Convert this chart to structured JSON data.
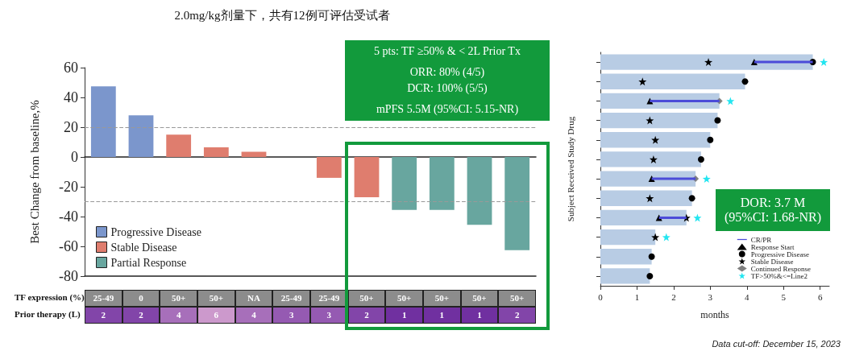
{
  "chart_data": [
    {
      "type": "bar",
      "title": "2.0mg/kg剂量下，共有12例可评估受试者",
      "ylabel": "Best Change from baseline,%",
      "categories": [
        null,
        null,
        null,
        null,
        null,
        null,
        null,
        null,
        null,
        null,
        null,
        null
      ],
      "series": [
        {
          "name": "Progressive Disease",
          "color": "#7b96cc",
          "values": [
            47.5,
            28,
            null,
            null,
            null,
            null,
            null,
            null,
            null,
            null,
            null,
            null
          ]
        },
        {
          "name": "Stable Disease",
          "color": "#df7d6e",
          "values": [
            null,
            null,
            15,
            6.5,
            3.5,
            null,
            -14,
            -27,
            null,
            null,
            null,
            null
          ]
        },
        {
          "name": "Partial Response",
          "color": "#68a69f",
          "values": [
            null,
            null,
            null,
            null,
            null,
            null,
            null,
            null,
            -35.5,
            -35.5,
            -45.5,
            -62.5
          ]
        }
      ],
      "ylim": [
        -80,
        60
      ],
      "yticks": [
        -80,
        -60,
        -40,
        -20,
        0,
        20,
        40,
        60
      ],
      "ref_lines": [
        {
          "axis": "y",
          "value": 20,
          "color": "#999999",
          "line_style": "dashed"
        },
        {
          "axis": "y",
          "value": -30,
          "color": "#999999",
          "line_style": "dashed"
        }
      ],
      "legend": "bottom left",
      "grid": false,
      "tick_labels": "y",
      "annotations": [
        "5 pts: TF ≥50% & < 2L Prior Tx",
        "ORR: 80% (4/5)",
        "DCR: 100% (5/5)",
        "mPFS 5.5M (95%CI: 5.15-NR)"
      ]
    },
    {
      "type": "heatmap",
      "categories": [
        null,
        null,
        null,
        null,
        null,
        null,
        null,
        null,
        null,
        null,
        null,
        null
      ],
      "y_categories": [
        "TF expression (%)",
        "Prior therapy (L)"
      ],
      "cells": [
        [
          null,
          null,
          null,
          null,
          null,
          null,
          null,
          null,
          null,
          null,
          null,
          null
        ],
        [
          2,
          2,
          4,
          6,
          4,
          3,
          3,
          2,
          1,
          1,
          1,
          2
        ]
      ],
      "cell_labels": [
        [
          "25-49",
          "0",
          "50+",
          "50+",
          "NA",
          "25-49",
          "25-49",
          "50+",
          "50+",
          "50+",
          "50+",
          "50+"
        ],
        [
          "2",
          "2",
          "4",
          "6",
          "4",
          "3",
          "3",
          "2",
          "1",
          "1",
          "1",
          "2"
        ]
      ]
    },
    {
      "type": "bar",
      "orientation": "horizontal",
      "ylabel": "Subject Received Study Drug",
      "xlabel": "months",
      "categories": [
        null,
        null,
        null,
        null,
        null,
        null,
        null,
        null,
        null,
        null,
        null,
        null
      ],
      "xlim": [
        0,
        6.25
      ],
      "xticks": [
        0,
        1,
        2,
        3,
        4,
        5,
        6
      ],
      "tick_labels": "x",
      "legend": "bottom right",
      "grid": false,
      "series": [
        {
          "color": "#b8cce4",
          "values": [
            5.8,
            3.95,
            3.25,
            3.2,
            3.0,
            2.75,
            2.6,
            2.5,
            2.35,
            1.5,
            1.4,
            1.35
          ]
        },
        {
          "name": "CR/PR",
          "color": "#4b4bd8",
          "base": [
            4.2,
            null,
            1.35,
            null,
            null,
            null,
            1.4,
            null,
            1.6,
            null,
            null,
            null
          ],
          "values": [
            1.6,
            null,
            1.9,
            null,
            null,
            null,
            1.2,
            null,
            0.75,
            null,
            null,
            null
          ]
        },
        {
          "name": "Response Start",
          "type": "scatter",
          "marker": "triangle",
          "color": "#000000",
          "values": [
            4.2,
            null,
            1.35,
            null,
            null,
            null,
            1.4,
            null,
            1.6,
            null,
            null,
            null
          ]
        },
        {
          "name": "Progressive Disease",
          "type": "scatter",
          "marker": "circle",
          "color": "#000000",
          "values": [
            5.8,
            3.95,
            null,
            3.2,
            3.0,
            2.75,
            null,
            2.5,
            null,
            null,
            1.4,
            1.35
          ]
        },
        {
          "name": "Stable Disease",
          "type": "scatter",
          "marker": "star",
          "color": "#000000",
          "values": [
            2.95,
            1.15,
            null,
            1.35,
            1.5,
            1.45,
            null,
            1.35,
            2.35,
            1.5,
            null,
            null
          ]
        },
        {
          "name": "Continued Response",
          "type": "scatter",
          "marker": "diamond",
          "color": "#808080",
          "values": [
            null,
            null,
            3.25,
            null,
            null,
            null,
            2.6,
            null,
            null,
            null,
            null,
            null
          ]
        },
        {
          "name": "TF>50%&<=Line2",
          "type": "scatter",
          "marker": "star",
          "color": "#22e5f0",
          "values": [
            6.1,
            null,
            3.55,
            null,
            null,
            null,
            2.9,
            null,
            2.65,
            1.8,
            null,
            null
          ]
        }
      ],
      "annotations": [
        "DOR: 3.7 M",
        "(95%CI: 1.68-NR)",
        "Data cut-off: December 15, 2023"
      ]
    }
  ]
}
